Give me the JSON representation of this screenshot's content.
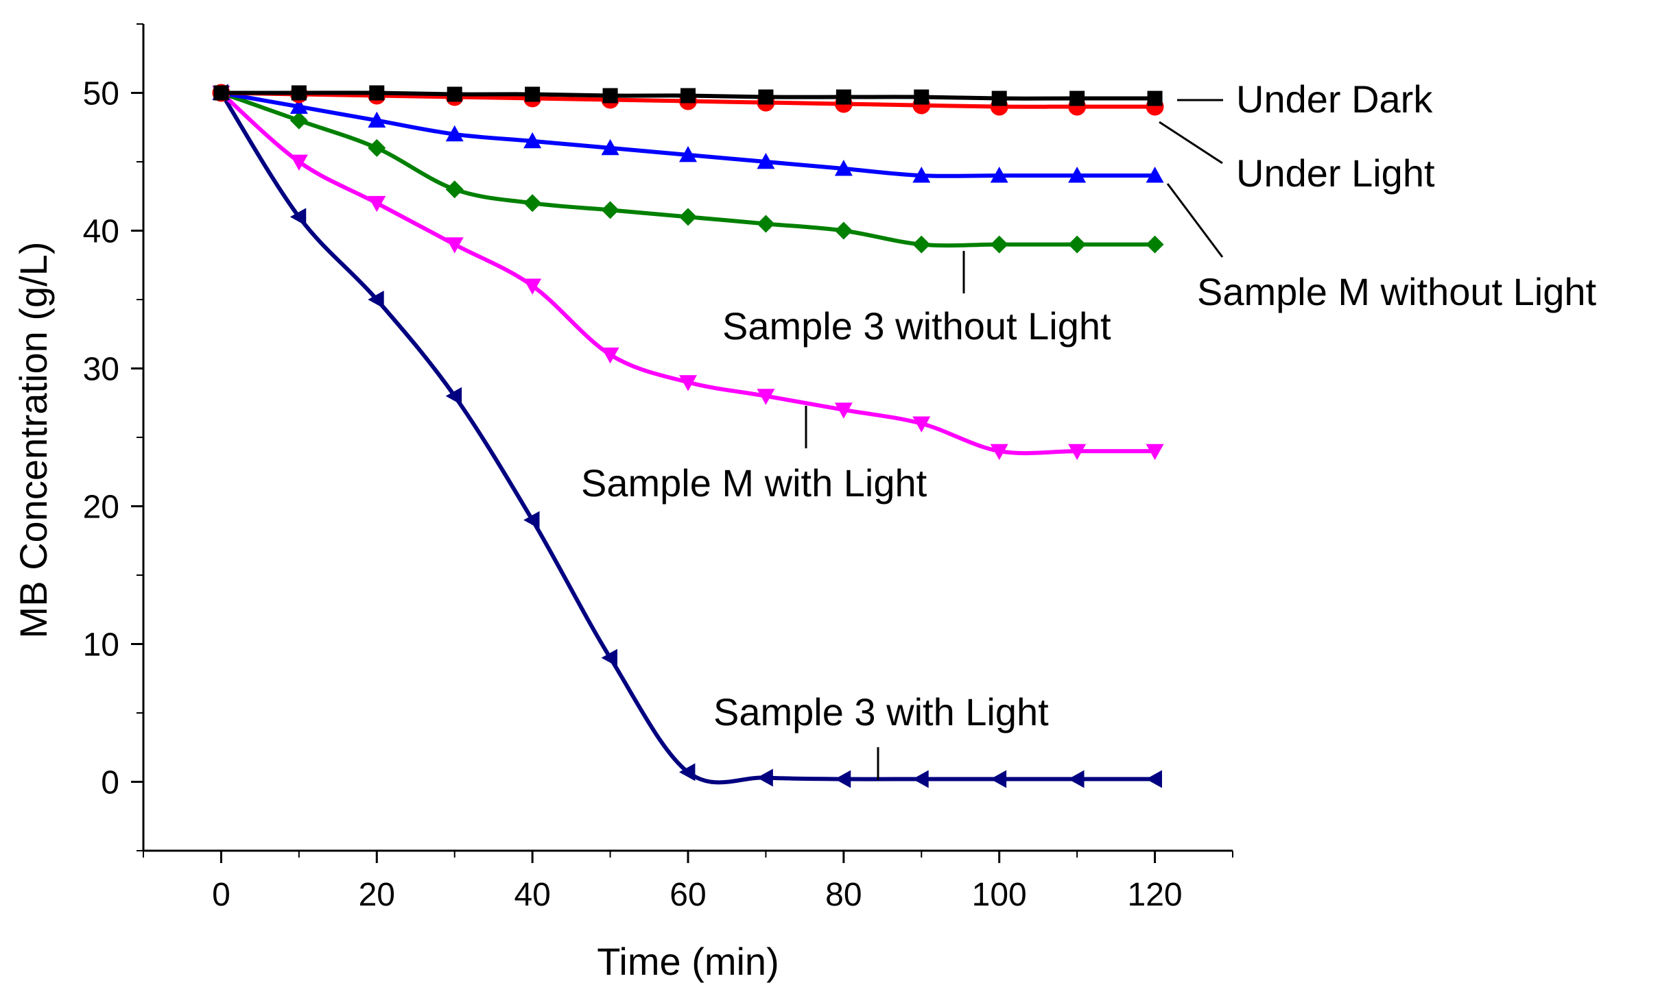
{
  "chart_data": {
    "type": "line",
    "title": "",
    "xlabel": "Time (min)",
    "ylabel": "MB Concentration (g/L)",
    "xlim": [
      -10,
      130
    ],
    "ylim": [
      -5,
      55
    ],
    "xticks": [
      0,
      20,
      40,
      60,
      80,
      100,
      120
    ],
    "yticks": [
      0,
      10,
      20,
      30,
      40,
      50
    ],
    "x": [
      0,
      10,
      20,
      30,
      40,
      50,
      60,
      70,
      80,
      90,
      100,
      110,
      120
    ],
    "series": [
      {
        "name": "Under Dark",
        "color": "#000000",
        "marker": "square",
        "values": [
          50,
          50,
          50,
          49.9,
          49.9,
          49.8,
          49.8,
          49.7,
          49.7,
          49.7,
          49.6,
          49.6,
          49.6
        ]
      },
      {
        "name": "Under Light",
        "color": "#ff0000",
        "marker": "circle",
        "values": [
          50,
          49.9,
          49.8,
          49.7,
          49.6,
          49.5,
          49.4,
          49.3,
          49.2,
          49.1,
          49.0,
          49.0,
          49.0
        ]
      },
      {
        "name": "Sample M without Light",
        "color": "#0000ff",
        "marker": "triangle-up",
        "values": [
          50,
          49,
          48,
          47,
          46.5,
          46,
          45.5,
          45,
          44.5,
          44,
          44,
          44,
          44
        ]
      },
      {
        "name": "Sample 3 without Light",
        "color": "#008000",
        "marker": "diamond",
        "values": [
          50,
          48,
          46,
          43,
          42,
          41.5,
          41,
          40.5,
          40,
          39,
          39,
          39,
          39
        ]
      },
      {
        "name": "Sample M with Light",
        "color": "#ff00ff",
        "marker": "triangle-down",
        "values": [
          50,
          45,
          42,
          39,
          36,
          31,
          29,
          28,
          27,
          26,
          24,
          24,
          24
        ]
      },
      {
        "name": "Sample 3 with Light",
        "color": "#000080",
        "marker": "triangle-left",
        "values": [
          50,
          41,
          35,
          28,
          19,
          9,
          0.7,
          0.3,
          0.2,
          0.2,
          0.2,
          0.2,
          0.2
        ]
      }
    ],
    "annotations": [
      {
        "text": "Under Dark",
        "series": "Under Dark"
      },
      {
        "text": "Under Light",
        "series": "Under Light"
      },
      {
        "text": "Sample M without Light",
        "series": "Sample M without Light"
      },
      {
        "text": "Sample 3 without Light",
        "series": "Sample 3 without Light"
      },
      {
        "text": "Sample M with Light",
        "series": "Sample M with Light"
      },
      {
        "text": "Sample 3 with Light",
        "series": "Sample 3 with Light"
      }
    ]
  }
}
